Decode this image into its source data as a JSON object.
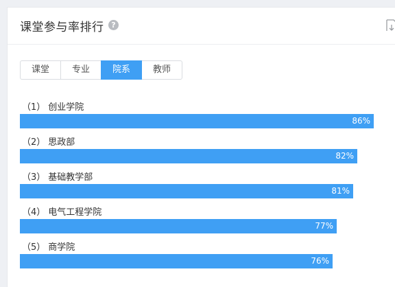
{
  "header": {
    "title": "课堂参与率排行",
    "help_icon": "question-circle-icon",
    "help_glyph": "?",
    "download_icon": "download-icon"
  },
  "tabs": [
    {
      "label": "课堂",
      "active": false
    },
    {
      "label": "专业",
      "active": false
    },
    {
      "label": "院系",
      "active": true
    },
    {
      "label": "教师",
      "active": false
    }
  ],
  "colors": {
    "accent": "#3f9ff4",
    "bar": "#3f9ff4",
    "text": "#333333"
  },
  "ranking": [
    {
      "rank": "（1）",
      "name": "创业学院",
      "percent": 86,
      "value_label": "86%"
    },
    {
      "rank": "（2）",
      "name": "思政部",
      "percent": 82,
      "value_label": "82%"
    },
    {
      "rank": "（3）",
      "name": "基础教学部",
      "percent": 81,
      "value_label": "81%"
    },
    {
      "rank": "（4）",
      "name": "电气工程学院",
      "percent": 77,
      "value_label": "77%"
    },
    {
      "rank": "（5）",
      "name": "商学院",
      "percent": 76,
      "value_label": "76%"
    }
  ]
}
